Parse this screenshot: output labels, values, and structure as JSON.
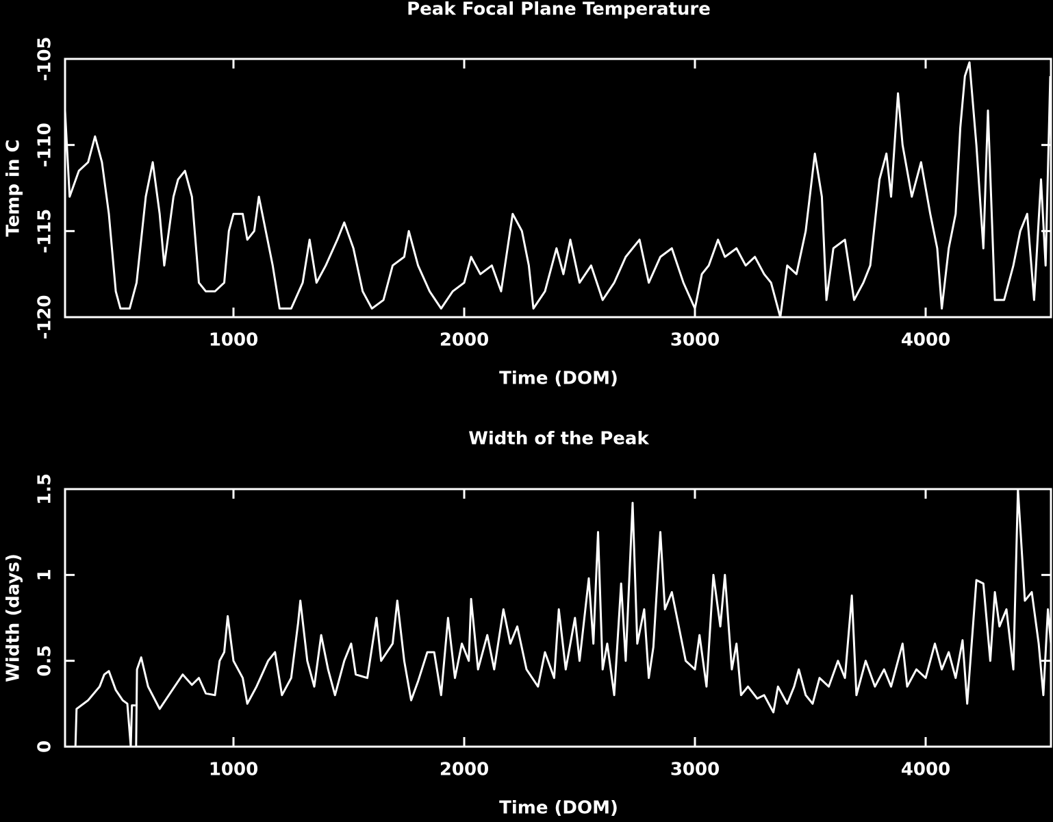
{
  "chart_data": [
    {
      "type": "line",
      "title": "Peak Focal Plane Temperature",
      "x_label": "Time (DOM)",
      "y_label": "Temp in C",
      "color": "#ffffff",
      "xlim": [
        270,
        4543
      ],
      "ylim": [
        -120,
        -105
      ],
      "xticks": [
        1000,
        2000,
        3000,
        4000
      ],
      "yticks": [
        -120,
        -115,
        -110,
        -105
      ],
      "x": [
        270,
        290,
        330,
        370,
        400,
        430,
        460,
        490,
        510,
        550,
        580,
        620,
        650,
        680,
        700,
        740,
        760,
        790,
        820,
        850,
        880,
        920,
        960,
        980,
        1000,
        1040,
        1060,
        1090,
        1110,
        1140,
        1170,
        1200,
        1250,
        1300,
        1330,
        1360,
        1400,
        1450,
        1480,
        1520,
        1560,
        1600,
        1650,
        1690,
        1740,
        1760,
        1800,
        1850,
        1900,
        1950,
        2000,
        2030,
        2070,
        2120,
        2160,
        2210,
        2250,
        2280,
        2300,
        2350,
        2400,
        2430,
        2460,
        2500,
        2550,
        2600,
        2650,
        2700,
        2760,
        2800,
        2850,
        2900,
        2950,
        3000,
        3030,
        3060,
        3100,
        3130,
        3180,
        3220,
        3260,
        3300,
        3330,
        3370,
        3400,
        3440,
        3480,
        3520,
        3550,
        3570,
        3600,
        3650,
        3690,
        3730,
        3760,
        3800,
        3830,
        3850,
        3880,
        3900,
        3940,
        3980,
        4020,
        4050,
        4070,
        4100,
        4130,
        4150,
        4170,
        4190,
        4220,
        4250,
        4270,
        4300,
        4340,
        4380,
        4410,
        4440,
        4470,
        4500,
        4520,
        4540
      ],
      "values": [
        -108,
        -113,
        -111.5,
        -111,
        -109.5,
        -111,
        -114,
        -118.5,
        -119.5,
        -119.5,
        -118,
        -113,
        -111,
        -114,
        -117,
        -113,
        -112,
        -111.5,
        -113,
        -118,
        -118.5,
        -118.5,
        -118,
        -115,
        -114,
        -114,
        -115.5,
        -115,
        -113,
        -115,
        -117,
        -119.5,
        -119.5,
        -118,
        -115.5,
        -118,
        -117,
        -115.5,
        -114.5,
        -116,
        -118.5,
        -119.5,
        -119,
        -117,
        -116.5,
        -115,
        -117,
        -118.5,
        -119.5,
        -118.5,
        -118,
        -116.5,
        -117.5,
        -117,
        -118.5,
        -114,
        -115,
        -117,
        -119.5,
        -118.5,
        -116,
        -117.5,
        -115.5,
        -118,
        -117,
        -119,
        -118,
        -116.5,
        -115.5,
        -118,
        -116.5,
        -116,
        -118,
        -119.5,
        -117.5,
        -117,
        -115.5,
        -116.5,
        -116,
        -117,
        -116.5,
        -117.5,
        -118,
        -120,
        -117,
        -117.5,
        -115,
        -110.5,
        -113,
        -119,
        -116,
        -115.5,
        -119,
        -118,
        -117,
        -112,
        -110.5,
        -113,
        -107,
        -110,
        -113,
        -111,
        -114,
        -116,
        -119.5,
        -116,
        -114,
        -109,
        -106,
        -105.2,
        -110,
        -116,
        -108,
        -119,
        -119,
        -117,
        -115,
        -114,
        -119,
        -112,
        -117,
        -106
      ]
    },
    {
      "type": "line",
      "title": "Width of the Peak",
      "x_label": "Time (DOM)",
      "y_label": "Width (days)",
      "color": "#ffffff",
      "xlim": [
        270,
        4543
      ],
      "ylim": [
        0,
        1.5
      ],
      "xticks": [
        1000,
        2000,
        3000,
        4000
      ],
      "yticks": [
        0,
        0.5,
        1,
        1.5
      ],
      "x": [
        315,
        320,
        370,
        420,
        440,
        460,
        490,
        520,
        540,
        555,
        560,
        575,
        576,
        578,
        582,
        600,
        630,
        680,
        720,
        780,
        820,
        850,
        880,
        920,
        940,
        960,
        975,
        1000,
        1040,
        1060,
        1100,
        1150,
        1180,
        1210,
        1250,
        1280,
        1290,
        1320,
        1350,
        1380,
        1410,
        1440,
        1480,
        1510,
        1530,
        1580,
        1620,
        1640,
        1690,
        1710,
        1740,
        1770,
        1800,
        1840,
        1870,
        1900,
        1930,
        1960,
        1990,
        2020,
        2030,
        2060,
        2100,
        2130,
        2170,
        2200,
        2230,
        2270,
        2320,
        2350,
        2390,
        2410,
        2440,
        2480,
        2500,
        2540,
        2560,
        2580,
        2600,
        2620,
        2650,
        2680,
        2700,
        2730,
        2750,
        2780,
        2800,
        2820,
        2850,
        2870,
        2900,
        2930,
        2960,
        3000,
        3020,
        3050,
        3080,
        3110,
        3130,
        3160,
        3180,
        3200,
        3230,
        3270,
        3300,
        3340,
        3360,
        3400,
        3430,
        3450,
        3480,
        3510,
        3540,
        3580,
        3620,
        3650,
        3680,
        3700,
        3740,
        3780,
        3820,
        3850,
        3900,
        3920,
        3960,
        4000,
        4040,
        4070,
        4100,
        4130,
        4160,
        4180,
        4220,
        4250,
        4280,
        4300,
        4320,
        4350,
        4380,
        4400,
        4430,
        4460,
        4490,
        4510,
        4530,
        4543
      ],
      "values": [
        0,
        0.22,
        0.27,
        0.35,
        0.42,
        0.44,
        0.33,
        0.27,
        0.25,
        0,
        0.24,
        0.24,
        null,
        0,
        0.45,
        0.52,
        0.35,
        0.22,
        0.3,
        0.42,
        0.36,
        0.4,
        0.31,
        0.3,
        0.5,
        0.55,
        0.76,
        0.5,
        0.4,
        0.25,
        0.35,
        0.5,
        0.55,
        0.3,
        0.4,
        0.72,
        0.85,
        0.5,
        0.35,
        0.65,
        0.45,
        0.3,
        0.5,
        0.6,
        0.42,
        0.4,
        0.75,
        0.5,
        0.6,
        0.85,
        0.5,
        0.27,
        0.38,
        0.55,
        0.55,
        0.3,
        0.75,
        0.4,
        0.6,
        0.5,
        0.86,
        0.45,
        0.65,
        0.45,
        0.8,
        0.6,
        0.7,
        0.45,
        0.35,
        0.55,
        0.4,
        0.8,
        0.45,
        0.75,
        0.5,
        0.98,
        0.6,
        1.25,
        0.45,
        0.6,
        0.3,
        0.95,
        0.5,
        1.42,
        0.6,
        0.8,
        0.4,
        0.58,
        1.25,
        0.8,
        0.9,
        0.7,
        0.5,
        0.45,
        0.65,
        0.35,
        1.0,
        0.7,
        1.0,
        0.45,
        0.6,
        0.3,
        0.35,
        0.28,
        0.3,
        0.2,
        0.35,
        0.25,
        0.35,
        0.45,
        0.3,
        0.25,
        0.4,
        0.35,
        0.5,
        0.4,
        0.88,
        0.3,
        0.5,
        0.35,
        0.45,
        0.35,
        0.6,
        0.35,
        0.45,
        0.4,
        0.6,
        0.45,
        0.55,
        0.4,
        0.62,
        0.25,
        0.97,
        0.95,
        0.5,
        0.9,
        0.7,
        0.8,
        0.45,
        1.5,
        0.85,
        0.9,
        0.6,
        0.3,
        0.8,
        0.6
      ]
    }
  ]
}
